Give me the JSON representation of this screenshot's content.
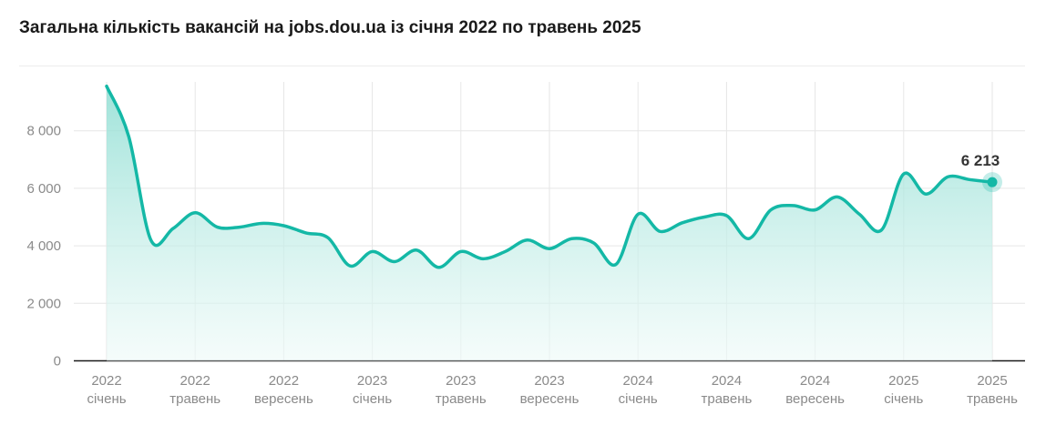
{
  "title": "Загальна кількість вакансій на jobs.dou.ua із січня 2022 по травень 2025",
  "colors": {
    "line": "#14b8a6",
    "fill_top": "#8fded3",
    "fill_bottom": "#eefaf8",
    "grid": "#e6e6e6",
    "tick": "#8a8a8a"
  },
  "chart_data": {
    "type": "area",
    "title": "Загальна кількість вакансій на jobs.dou.ua із січня 2022 по травень 2025",
    "xlabel": "",
    "ylabel": "",
    "ylim": [
      0,
      9700
    ],
    "yticks": [
      0,
      2000,
      4000,
      6000,
      8000
    ],
    "ytick_labels": [
      "0",
      "2 000",
      "4 000",
      "6 000",
      "8 000"
    ],
    "grid": true,
    "x_labels": [
      {
        "index": 0,
        "year": "2022",
        "month": "січень"
      },
      {
        "index": 4,
        "year": "2022",
        "month": "травень"
      },
      {
        "index": 8,
        "year": "2022",
        "month": "вересень"
      },
      {
        "index": 12,
        "year": "2023",
        "month": "січень"
      },
      {
        "index": 16,
        "year": "2023",
        "month": "травень"
      },
      {
        "index": 20,
        "year": "2023",
        "month": "вересень"
      },
      {
        "index": 24,
        "year": "2024",
        "month": "січень"
      },
      {
        "index": 28,
        "year": "2024",
        "month": "травень"
      },
      {
        "index": 32,
        "year": "2024",
        "month": "вересень"
      },
      {
        "index": 36,
        "year": "2025",
        "month": "січень"
      },
      {
        "index": 40,
        "year": "2025",
        "month": "травень"
      }
    ],
    "x": [
      "2022-01",
      "2022-02",
      "2022-03",
      "2022-04",
      "2022-05",
      "2022-06",
      "2022-07",
      "2022-08",
      "2022-09",
      "2022-10",
      "2022-11",
      "2022-12",
      "2023-01",
      "2023-02",
      "2023-03",
      "2023-04",
      "2023-05",
      "2023-06",
      "2023-07",
      "2023-08",
      "2023-09",
      "2023-10",
      "2023-11",
      "2023-12",
      "2024-01",
      "2024-02",
      "2024-03",
      "2024-04",
      "2024-05",
      "2024-06",
      "2024-07",
      "2024-08",
      "2024-09",
      "2024-10",
      "2024-11",
      "2024-12",
      "2025-01",
      "2025-02",
      "2025-03",
      "2025-04",
      "2025-05"
    ],
    "series": [
      {
        "values": [
          9550,
          7800,
          4200,
          4600,
          5150,
          4650,
          4650,
          4780,
          4700,
          4450,
          4280,
          3300,
          3800,
          3450,
          3850,
          3250,
          3800,
          3550,
          3800,
          4200,
          3900,
          4250,
          4100,
          3350,
          5100,
          4500,
          4800,
          5000,
          5050,
          4250,
          5250,
          5400,
          5250,
          5700,
          5100,
          4550,
          6500,
          5800,
          6400,
          6300,
          6213
        ]
      }
    ],
    "last_value_label": "6 213"
  }
}
